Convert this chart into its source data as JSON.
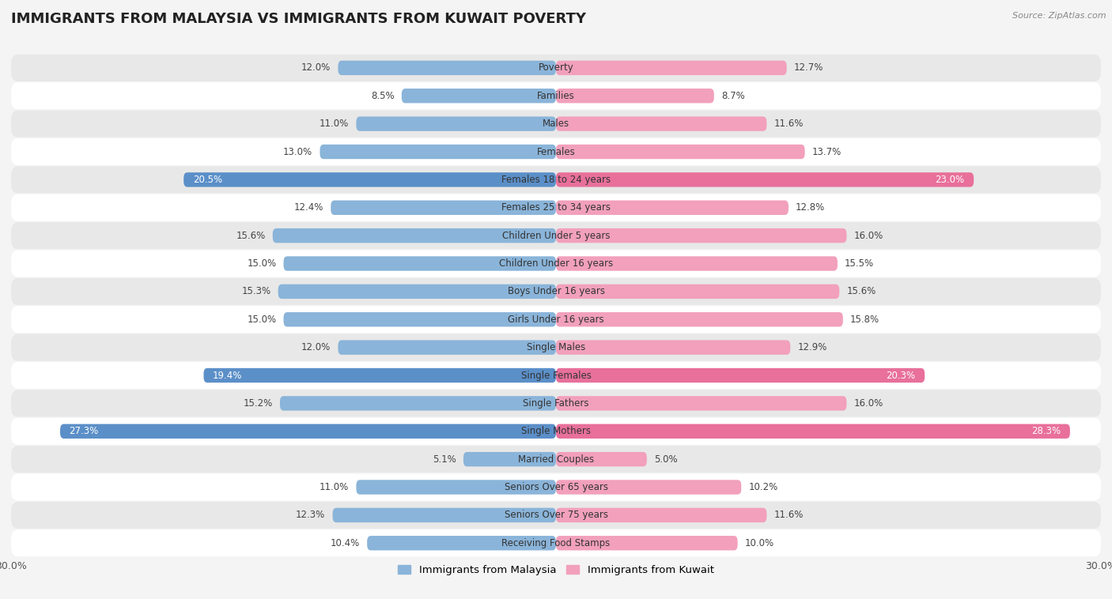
{
  "title": "IMMIGRANTS FROM MALAYSIA VS IMMIGRANTS FROM KUWAIT POVERTY",
  "source": "Source: ZipAtlas.com",
  "categories": [
    "Poverty",
    "Families",
    "Males",
    "Females",
    "Females 18 to 24 years",
    "Females 25 to 34 years",
    "Children Under 5 years",
    "Children Under 16 years",
    "Boys Under 16 years",
    "Girls Under 16 years",
    "Single Males",
    "Single Females",
    "Single Fathers",
    "Single Mothers",
    "Married Couples",
    "Seniors Over 65 years",
    "Seniors Over 75 years",
    "Receiving Food Stamps"
  ],
  "malaysia_values": [
    12.0,
    8.5,
    11.0,
    13.0,
    20.5,
    12.4,
    15.6,
    15.0,
    15.3,
    15.0,
    12.0,
    19.4,
    15.2,
    27.3,
    5.1,
    11.0,
    12.3,
    10.4
  ],
  "kuwait_values": [
    12.7,
    8.7,
    11.6,
    13.7,
    23.0,
    12.8,
    16.0,
    15.5,
    15.6,
    15.8,
    12.9,
    20.3,
    16.0,
    28.3,
    5.0,
    10.2,
    11.6,
    10.0
  ],
  "malaysia_color": "#8ab4d9",
  "kuwait_color": "#f2a0bb",
  "malaysia_highlight_color": "#5b8fc8",
  "kuwait_highlight_color": "#e8709a",
  "highlight_rows": [
    4,
    11,
    13
  ],
  "max_value": 30.0,
  "background_color": "#f4f4f4",
  "row_bg_white": "#ffffff",
  "row_bg_gray": "#e8e8e8",
  "legend_malaysia": "Immigrants from Malaysia",
  "legend_kuwait": "Immigrants from Kuwait",
  "cat_fontsize": 8.5,
  "val_fontsize": 8.5,
  "bar_height": 0.52
}
